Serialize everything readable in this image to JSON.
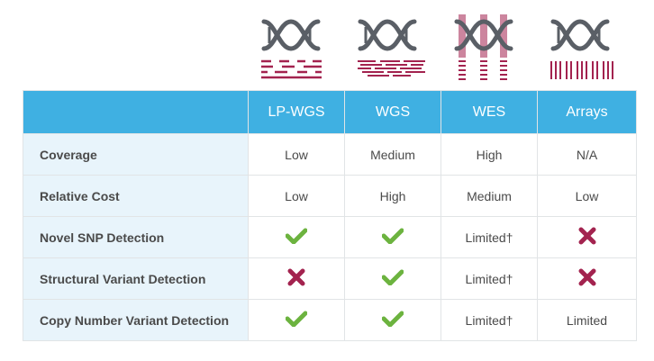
{
  "colors": {
    "header_bg": "#3fb0e2",
    "label_bg": "#e8f4fb",
    "check": "#6cb33f",
    "cross": "#a3234f",
    "dna": "#5a5f66",
    "accent": "#a3234f"
  },
  "icons": [
    {
      "name": "lp-wgs-dna-icon"
    },
    {
      "name": "wgs-dna-icon"
    },
    {
      "name": "wes-dna-icon"
    },
    {
      "name": "arrays-dna-icon"
    }
  ],
  "columns": [
    "LP-WGS",
    "WGS",
    "WES",
    "Arrays"
  ],
  "rows": [
    {
      "label": "Coverage",
      "cells": [
        {
          "type": "text",
          "value": "Low"
        },
        {
          "type": "text",
          "value": "Medium"
        },
        {
          "type": "text",
          "value": "High"
        },
        {
          "type": "text",
          "value": "N/A"
        }
      ]
    },
    {
      "label": "Relative Cost",
      "cells": [
        {
          "type": "text",
          "value": "Low"
        },
        {
          "type": "text",
          "value": "High"
        },
        {
          "type": "text",
          "value": "Medium"
        },
        {
          "type": "text",
          "value": "Low"
        }
      ]
    },
    {
      "label": "Novel SNP Detection",
      "cells": [
        {
          "type": "check"
        },
        {
          "type": "check"
        },
        {
          "type": "text",
          "value": "Limited†"
        },
        {
          "type": "cross"
        }
      ]
    },
    {
      "label": "Structural Variant Detection",
      "cells": [
        {
          "type": "cross"
        },
        {
          "type": "check"
        },
        {
          "type": "text",
          "value": "Limited†"
        },
        {
          "type": "cross"
        }
      ]
    },
    {
      "label": "Copy Number Variant Detection",
      "cells": [
        {
          "type": "check"
        },
        {
          "type": "check"
        },
        {
          "type": "text",
          "value": "Limited†"
        },
        {
          "type": "text",
          "value": "Limited"
        }
      ]
    }
  ]
}
